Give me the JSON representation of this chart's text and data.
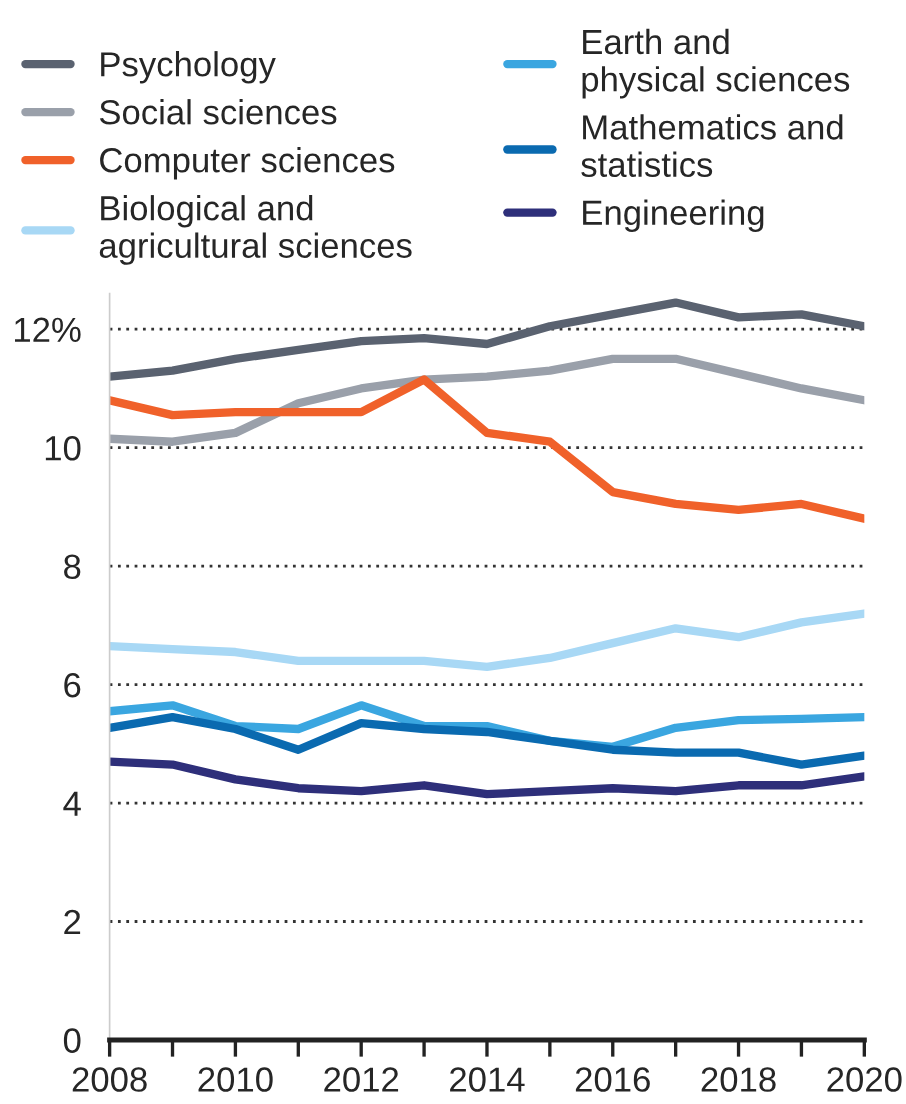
{
  "chart_data": {
    "type": "line",
    "x": [
      2008,
      2009,
      2010,
      2011,
      2012,
      2013,
      2014,
      2015,
      2016,
      2017,
      2018,
      2019,
      2020
    ],
    "series": [
      {
        "name": "Psychology",
        "color": "#5a6270",
        "values": [
          11.2,
          11.3,
          11.5,
          11.65,
          11.8,
          11.85,
          11.75,
          12.05,
          12.25,
          12.45,
          12.2,
          12.25,
          12.05
        ]
      },
      {
        "name": "Social sciences",
        "color": "#9aa0aa",
        "values": [
          10.15,
          10.1,
          10.25,
          10.75,
          11.0,
          11.15,
          11.2,
          11.3,
          11.5,
          11.5,
          11.25,
          11.0,
          10.8
        ]
      },
      {
        "name": "Computer sciences",
        "color": "#f0612a",
        "values": [
          10.8,
          10.55,
          10.6,
          10.6,
          10.6,
          11.15,
          10.25,
          10.1,
          9.25,
          9.05,
          8.95,
          9.05,
          8.8
        ]
      },
      {
        "name": "Biological and\nagricultural sciences",
        "color": "#a8d8f5",
        "values": [
          6.65,
          6.6,
          6.55,
          6.4,
          6.4,
          6.4,
          6.3,
          6.45,
          6.7,
          6.95,
          6.8,
          7.05,
          7.2
        ]
      },
      {
        "name": "Earth and\nphysical sciences",
        "color": "#3aa6e0",
        "values": [
          5.55,
          5.65,
          5.3,
          5.25,
          5.65,
          5.3,
          5.3,
          5.05,
          4.95,
          5.27,
          5.4,
          5.42,
          5.45
        ]
      },
      {
        "name": "Mathematics and\nstatistics",
        "color": "#0a6ab0",
        "values": [
          5.27,
          5.45,
          5.25,
          4.9,
          5.35,
          5.25,
          5.2,
          5.05,
          4.9,
          4.85,
          4.85,
          4.65,
          4.8
        ]
      },
      {
        "name": "Engineering",
        "color": "#2e2f7a",
        "values": [
          4.7,
          4.65,
          4.4,
          4.25,
          4.2,
          4.3,
          4.15,
          4.2,
          4.25,
          4.2,
          4.3,
          4.3,
          4.45
        ]
      }
    ],
    "xlim": [
      2008,
      2020
    ],
    "xticks": [
      2008,
      {
        "value": 2009,
        "label": null
      },
      2010,
      {
        "value": 2011,
        "label": null
      },
      2012,
      {
        "value": 2013,
        "label": null
      },
      2014,
      {
        "value": 2015,
        "label": null
      },
      2016,
      {
        "value": 2017,
        "label": null
      },
      2018,
      {
        "value": 2019,
        "label": null
      },
      2020
    ],
    "ylim": [
      0,
      12.6
    ],
    "yticks": [
      0,
      2,
      4,
      6,
      8,
      10,
      {
        "value": 12,
        "label": "12%"
      }
    ],
    "grid": "y",
    "legend": "top",
    "marker": "none",
    "line_style": "solid"
  }
}
